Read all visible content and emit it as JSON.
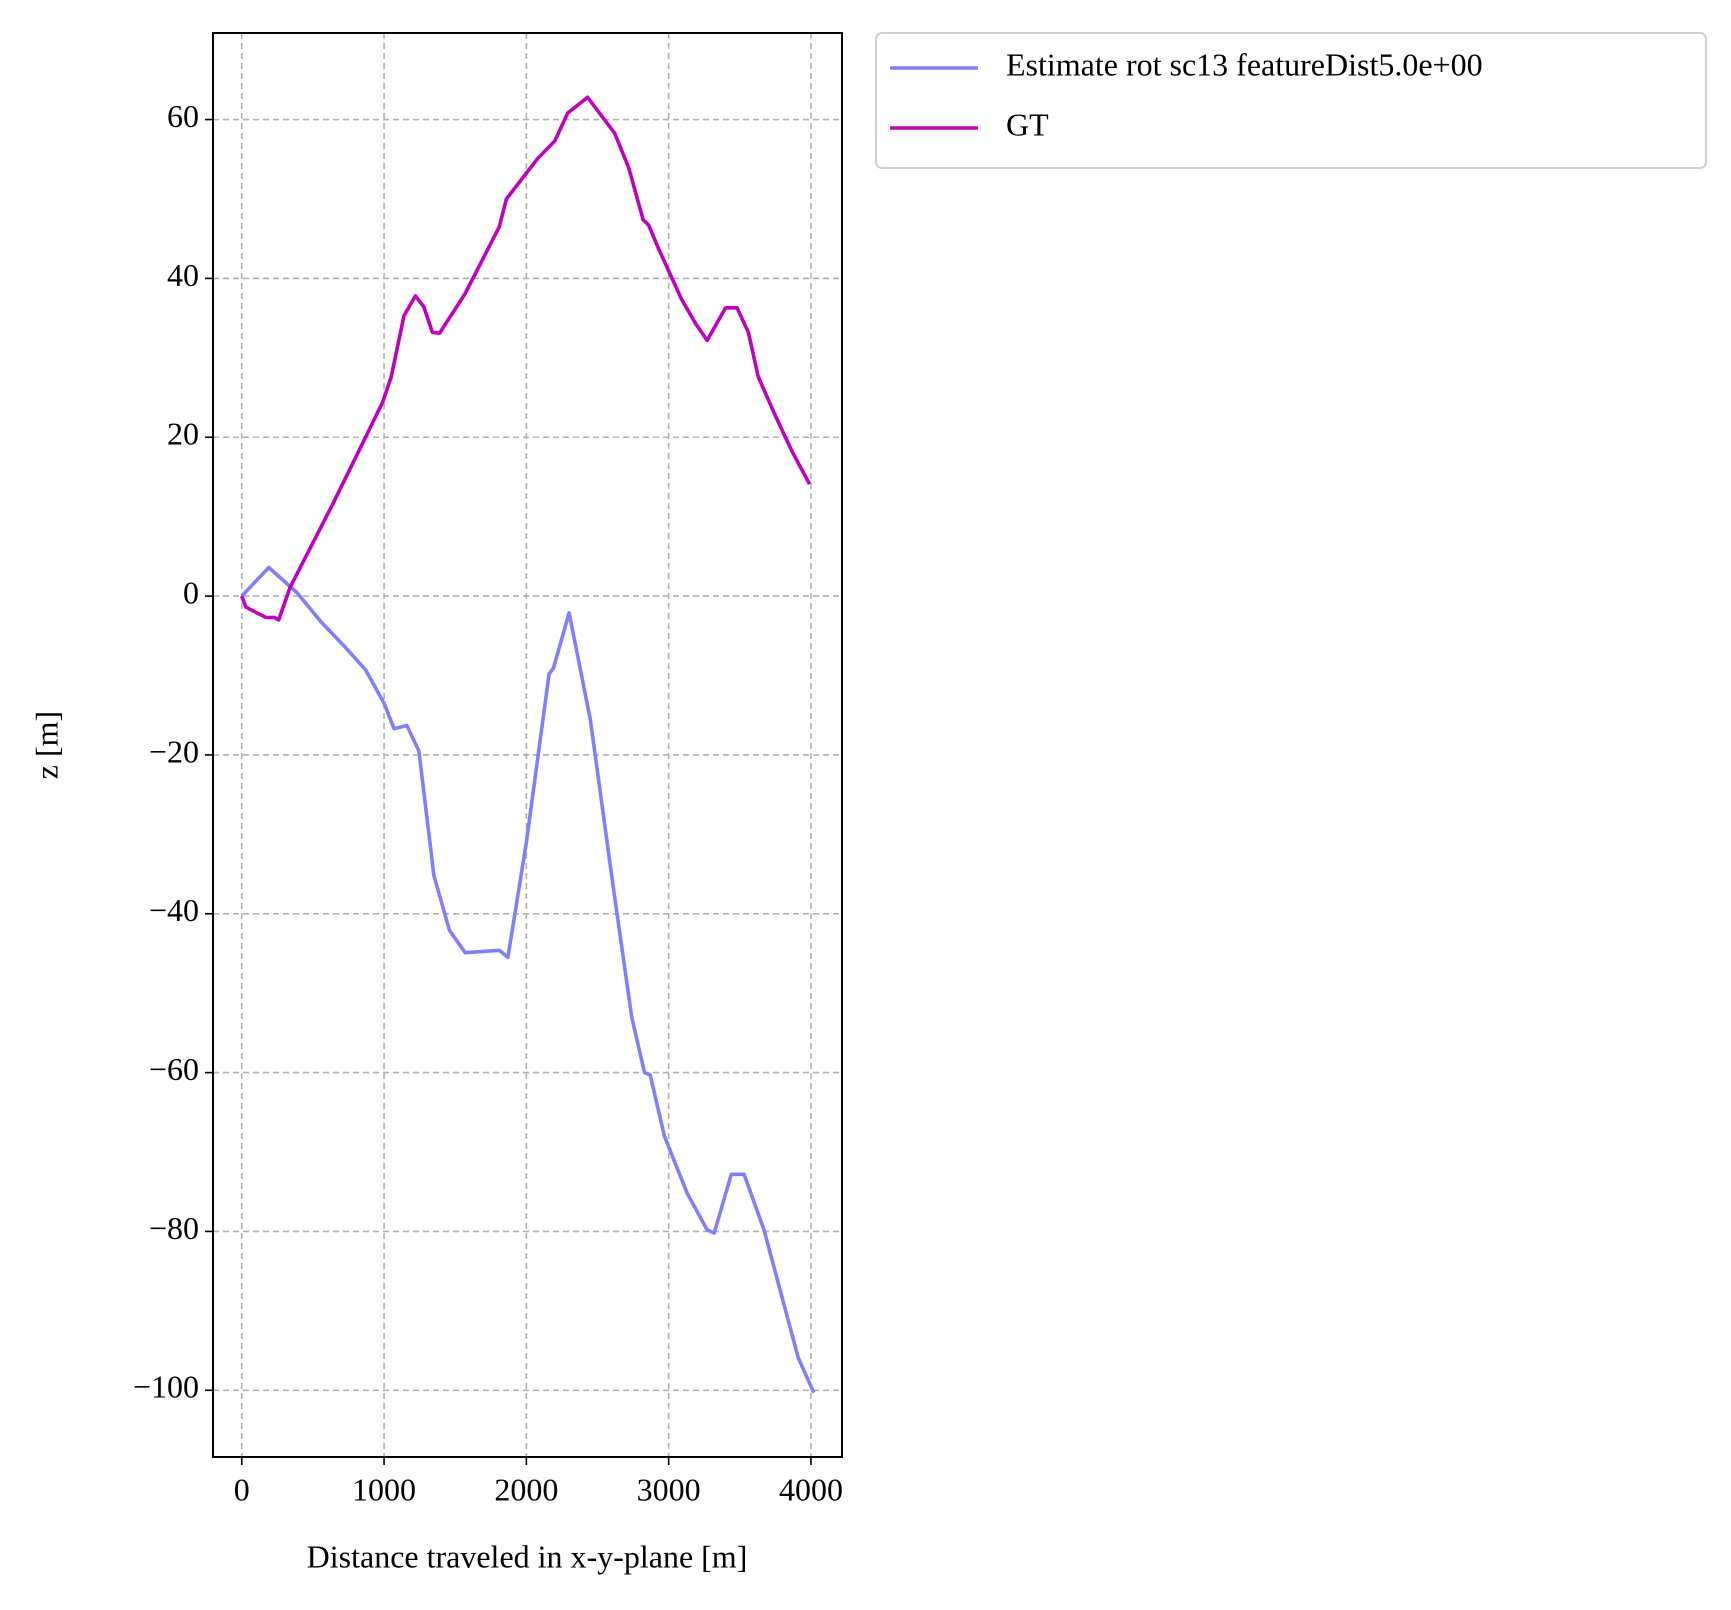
{
  "chart_data": {
    "type": "line",
    "xlabel": "Distance traveled in x-y-plane [m]",
    "ylabel": "z [m]",
    "xlim": [
      -202,
      4218
    ],
    "ylim": [
      -108.4,
      70.9
    ],
    "xticks": [
      0,
      1000,
      2000,
      3000,
      4000
    ],
    "yticks": [
      {
        "value": -100,
        "label": "−100"
      },
      {
        "value": -80,
        "label": "−80"
      },
      {
        "value": -60,
        "label": "−60"
      },
      {
        "value": -40,
        "label": "−40"
      },
      {
        "value": -20,
        "label": "−20"
      },
      0,
      20,
      40,
      60
    ],
    "grid": true,
    "legend": "outside upper right",
    "series": [
      {
        "name": "Estimate rot sc13 featureDist5.0e+00",
        "color": "#8080ff",
        "x": [
          0,
          190,
          390,
          560,
          720,
          870,
          1000,
          1070,
          1160,
          1245,
          1350,
          1460,
          1570,
          1810,
          1870,
          2000,
          2160,
          2190,
          2300,
          2450,
          2610,
          2740,
          2830,
          2870,
          2970,
          3130,
          3270,
          3320,
          3440,
          3530,
          3670,
          3910,
          4020
        ],
        "values": [
          0,
          3.6,
          0.4,
          -3.3,
          -6.3,
          -9.3,
          -13.5,
          -16.7,
          -16.3,
          -19.5,
          -35.2,
          -42.1,
          -44.9,
          -44.6,
          -45.5,
          -31,
          -9.8,
          -9.1,
          -2.1,
          -15.6,
          -36.6,
          -53,
          -60,
          -60.3,
          -68,
          -75.2,
          -79.8,
          -80.2,
          -72.8,
          -72.8,
          -79.8,
          -95.9,
          -100.3
        ]
      },
      {
        "name": "GT",
        "color": "#bf00bf",
        "x": [
          0,
          30,
          170,
          230,
          260,
          340,
          420,
          640,
          870,
          990,
          1050,
          1140,
          1220,
          1280,
          1340,
          1390,
          1570,
          1810,
          1860,
          2080,
          2200,
          2290,
          2430,
          2620,
          2720,
          2820,
          2860,
          2930,
          3090,
          3190,
          3270,
          3400,
          3480,
          3560,
          3630,
          3750,
          3870,
          3990
        ],
        "values": [
          0,
          -1.4,
          -2.7,
          -2.7,
          -3,
          1.1,
          3.9,
          11.6,
          20,
          24.4,
          27.6,
          35.3,
          37.8,
          36.4,
          33.2,
          33.1,
          38.1,
          46.5,
          50,
          55.1,
          57.3,
          60.8,
          62.8,
          58.3,
          53.9,
          47.4,
          46.7,
          43.7,
          37.4,
          34.3,
          32.2,
          36.3,
          36.3,
          33.2,
          27.6,
          22.7,
          18.1,
          14.1
        ]
      }
    ]
  }
}
